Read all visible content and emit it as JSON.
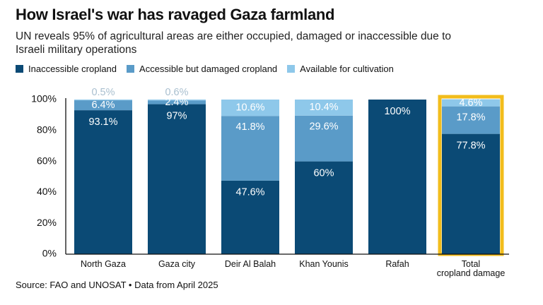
{
  "title": "How Israel's war has ravaged Gaza farmland",
  "subtitle": "UN reveals 95% of agricultural areas are either occupied, damaged or inaccessible due to Israeli military operations",
  "source": "Source: FAO and UNOSAT • Data from April 2025",
  "colors": {
    "inaccessible": "#0b4a75",
    "damaged": "#5a9bc8",
    "available": "#8ec8ea",
    "highlight": "#f2bd1c",
    "label_light": "#ffffff",
    "label_muted": "#a9bfcf"
  },
  "chart_data": {
    "type": "bar",
    "stacked": true,
    "categories": [
      "North Gaza",
      "Gaza city",
      "Deir Al Balah",
      "Khan Younis",
      "Rafah",
      "Total\ncropland damage"
    ],
    "highlighted_category": "Total\ncropland damage",
    "series": [
      {
        "name": "Inaccessible cropland",
        "values": [
          93.1,
          97,
          47.6,
          60,
          100,
          77.8
        ],
        "labels": [
          "93.1%",
          "97%",
          "47.6%",
          "60%",
          "100%",
          "77.8%"
        ]
      },
      {
        "name": "Accessible but damaged cropland",
        "values": [
          6.4,
          2.4,
          41.8,
          29.6,
          0,
          17.8
        ],
        "labels": [
          "6.4%",
          "2.4%",
          "41.8%",
          "29.6%",
          "",
          "17.8%"
        ]
      },
      {
        "name": "Available for cultivation",
        "values": [
          0.5,
          0.6,
          10.6,
          10.4,
          0,
          4.6
        ],
        "labels": [
          "0.5%",
          "0.6%",
          "10.6%",
          "10.4%",
          "",
          "4.6%"
        ]
      }
    ],
    "ylim": [
      0,
      100
    ],
    "yticks": [
      "0%",
      "20%",
      "40%",
      "60%",
      "80%",
      "100%"
    ],
    "ytick_values": [
      0,
      20,
      40,
      60,
      80,
      100
    ],
    "grid": false,
    "legend_position": "top-left",
    "xlabel": "",
    "ylabel": ""
  }
}
